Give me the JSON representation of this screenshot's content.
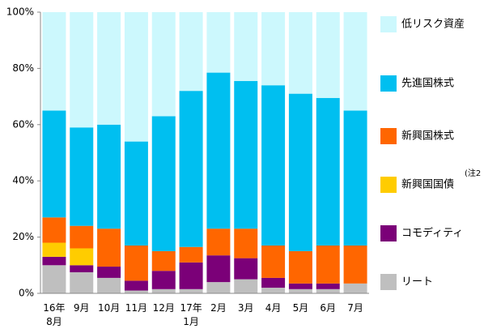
{
  "chart_data": {
    "type": "stacked_bar",
    "categories": [
      "16年\n8月",
      "9月",
      "10月",
      "11月",
      "12月",
      "17年\n1月",
      "2月",
      "3月",
      "4月",
      "5月",
      "6月",
      "7月"
    ],
    "series": [
      {
        "name": "リート",
        "color": "#bfbfbf",
        "values": [
          10,
          7.5,
          5.5,
          1,
          1.5,
          1.5,
          4,
          5,
          2,
          1.5,
          1.5,
          3.5
        ]
      },
      {
        "name": "コモディティ",
        "color": "#7b0078",
        "values": [
          3,
          2.5,
          4,
          3.5,
          6.5,
          9.5,
          9.5,
          7.5,
          3.5,
          2,
          2,
          0
        ]
      },
      {
        "name": "新興国国債",
        "color": "#ffcc00",
        "values": [
          5,
          6,
          0,
          0,
          0,
          0,
          0,
          0,
          0,
          0,
          0,
          0
        ]
      },
      {
        "name": "新興国株式",
        "color": "#ff6600",
        "values": [
          9,
          8,
          13.5,
          12.5,
          7,
          5.5,
          9.5,
          10.5,
          11.5,
          11.5,
          13.5,
          13.5
        ]
      },
      {
        "name": "先進国株式",
        "color": "#00bff0",
        "values": [
          38,
          35,
          37,
          37,
          48,
          55.5,
          55.5,
          52.5,
          57,
          56,
          52.5,
          48
        ]
      },
      {
        "name": "低リスク資産",
        "color": "#ccf8fd",
        "values": [
          35,
          41,
          40,
          46,
          37,
          28,
          21.5,
          24.5,
          26,
          29,
          30.5,
          35
        ]
      }
    ],
    "annotation": "(注2",
    "ylim": [
      0,
      100
    ],
    "yticks": [
      {
        "value": 0,
        "label": "0%"
      },
      {
        "value": 20,
        "label": "20%"
      },
      {
        "value": 40,
        "label": "40%"
      },
      {
        "value": 60,
        "label": "60%"
      },
      {
        "value": 80,
        "label": "80%"
      },
      {
        "value": 100,
        "label": "100%"
      }
    ]
  }
}
